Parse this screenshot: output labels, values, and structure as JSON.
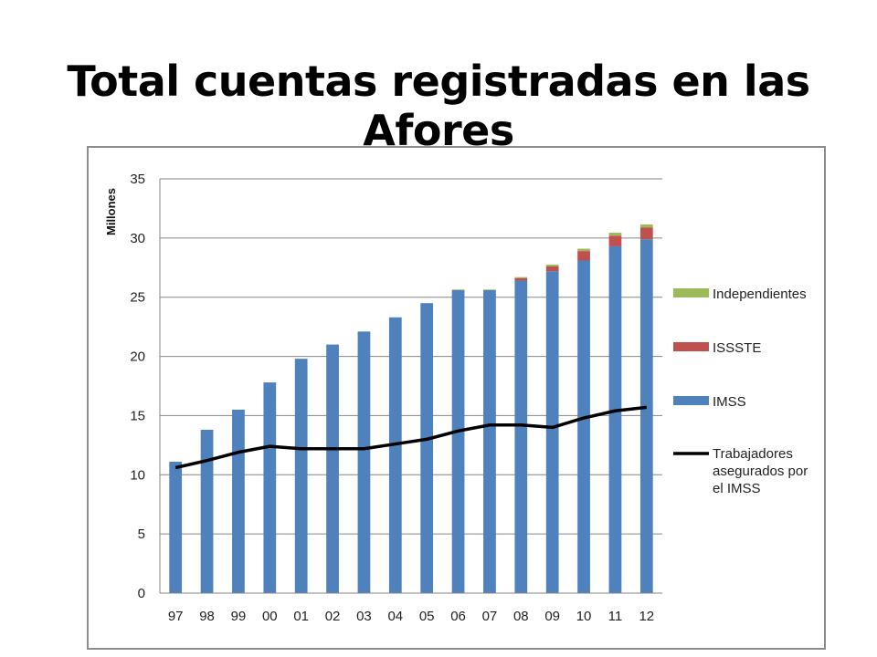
{
  "slide": {
    "title": "Total cuentas registradas en las Afores"
  },
  "chart_data": {
    "type": "bar",
    "stacked": true,
    "title": "",
    "xlabel": "",
    "ylabel": "Millones",
    "ylim": [
      0,
      35
    ],
    "yticks": [
      0,
      5,
      10,
      15,
      20,
      25,
      30,
      35
    ],
    "grid": true,
    "legend_position": "right",
    "categories": [
      "97",
      "98",
      "99",
      "00",
      "01",
      "02",
      "03",
      "04",
      "05",
      "06",
      "07",
      "08",
      "09",
      "10",
      "11",
      "12"
    ],
    "series": [
      {
        "name": "IMSS",
        "kind": "bar",
        "color": "#4f81bd",
        "values": [
          11.1,
          13.8,
          15.5,
          17.8,
          19.8,
          21.0,
          22.1,
          23.3,
          24.5,
          25.6,
          25.6,
          26.4,
          27.2,
          28.1,
          29.3,
          29.9
        ]
      },
      {
        "name": "ISSSTE",
        "kind": "bar",
        "color": "#c0504d",
        "values": [
          0,
          0,
          0,
          0,
          0,
          0,
          0,
          0,
          0,
          0,
          0,
          0.2,
          0.4,
          0.8,
          0.9,
          1.0
        ]
      },
      {
        "name": "Independientes",
        "kind": "bar",
        "color": "#9bbb59",
        "values": [
          0,
          0,
          0,
          0,
          0,
          0,
          0,
          0,
          0,
          0.05,
          0.05,
          0.1,
          0.15,
          0.2,
          0.25,
          0.25
        ]
      },
      {
        "name": "Trabajadores asegurados por el IMSS",
        "kind": "line",
        "color": "#000000",
        "values": [
          10.6,
          11.2,
          11.9,
          12.4,
          12.2,
          12.2,
          12.2,
          12.6,
          13.0,
          13.7,
          14.2,
          14.2,
          14.0,
          14.8,
          15.4,
          15.7
        ]
      }
    ],
    "legend": [
      {
        "label_lines": [
          "Independientes"
        ],
        "color": "#9bbb59",
        "kind": "bar"
      },
      {
        "label_lines": [
          "ISSSTE"
        ],
        "color": "#c0504d",
        "kind": "bar"
      },
      {
        "label_lines": [
          "IMSS"
        ],
        "color": "#4f81bd",
        "kind": "bar"
      },
      {
        "label_lines": [
          "Trabajadores",
          "asegurados por",
          "el IMSS"
        ],
        "color": "#000000",
        "kind": "line"
      }
    ]
  }
}
